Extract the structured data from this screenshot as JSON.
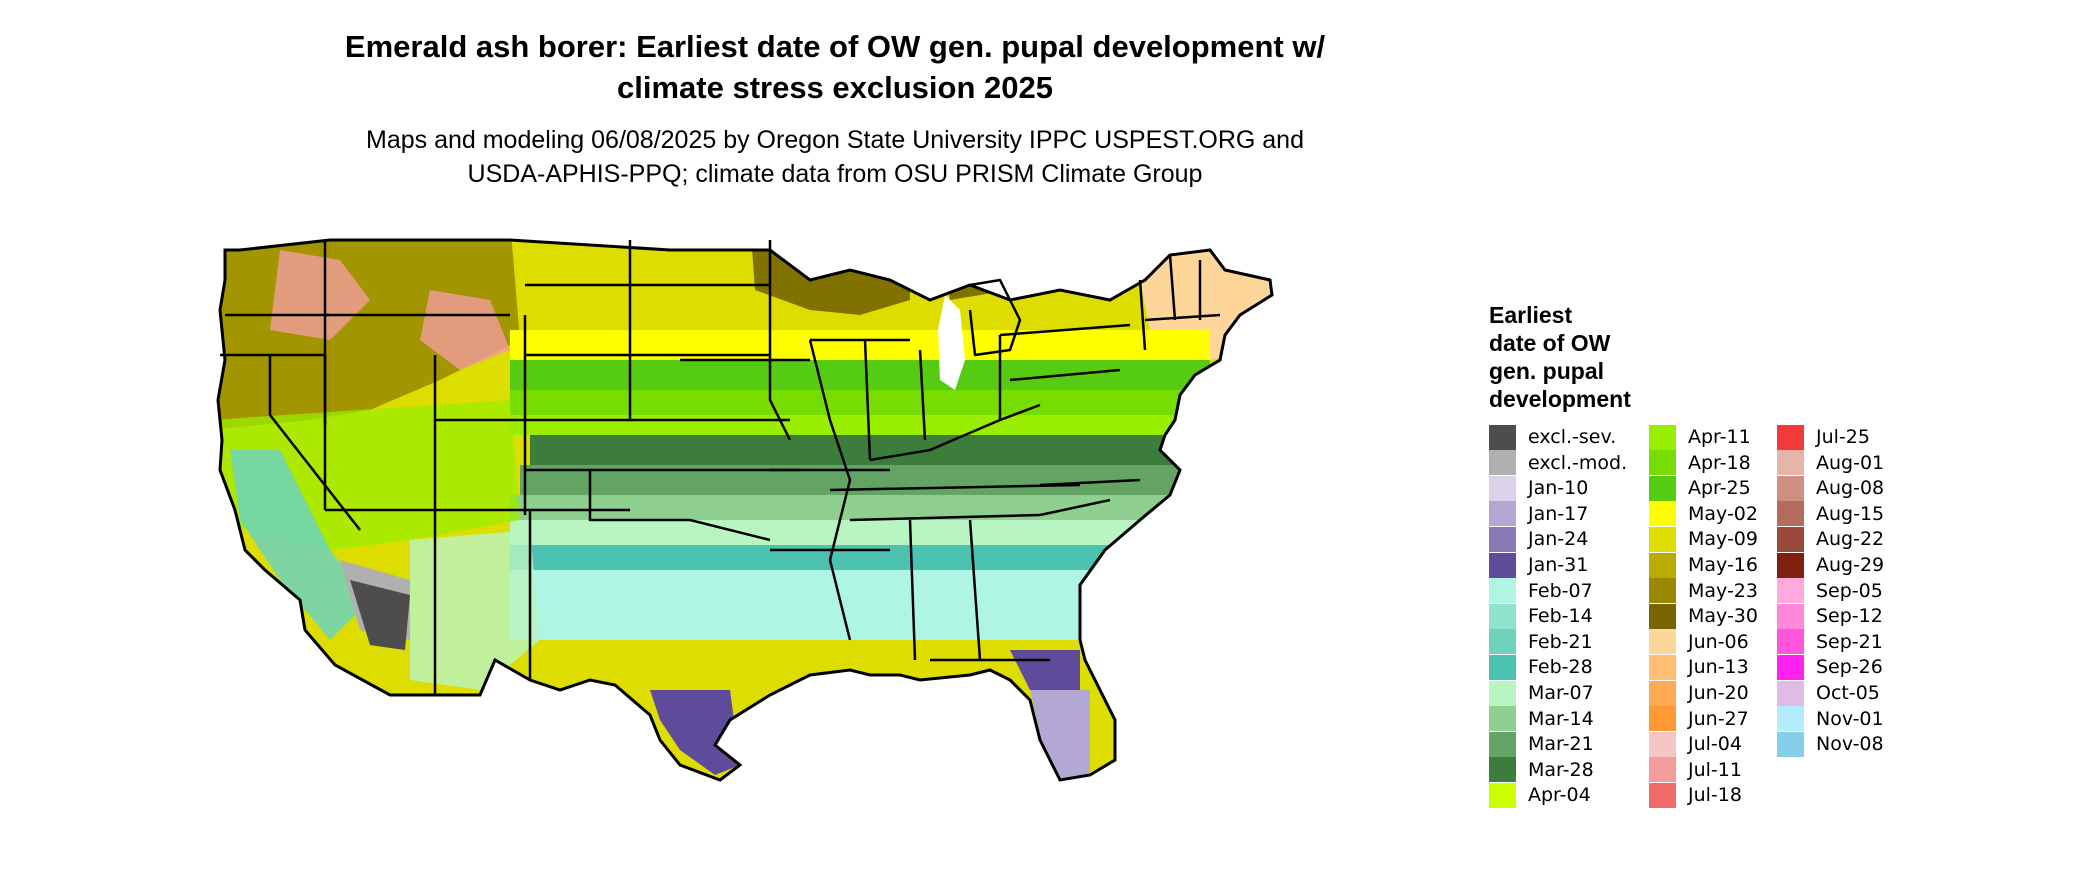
{
  "title": {
    "line1": "Emerald ash borer: Earliest date of OW gen. pupal development w/",
    "line2": "climate stress exclusion 2025"
  },
  "subtitle": {
    "line1": "Maps and modeling 06/08/2025 by Oregon State University IPPC USPEST.ORG and",
    "line2": "USDA-APHIS-PPQ; climate data from OSU PRISM Climate Group"
  },
  "legend": {
    "title_lines": [
      "Earliest",
      "date of OW",
      "gen. pupal",
      "development"
    ],
    "columns": [
      [
        {
          "label": "excl.-sev.",
          "color": "#4d4d4d"
        },
        {
          "label": "excl.-mod.",
          "color": "#b0b0b0"
        },
        {
          "label": "Jan-10",
          "color": "#d9d2e9"
        },
        {
          "label": "Jan-17",
          "color": "#b3a8d3"
        },
        {
          "label": "Jan-24",
          "color": "#8a78b6"
        },
        {
          "label": "Jan-31",
          "color": "#5e4b99"
        },
        {
          "label": "Feb-07",
          "color": "#aef5e3"
        },
        {
          "label": "Feb-14",
          "color": "#8fe3cc"
        },
        {
          "label": "Feb-21",
          "color": "#6dd3bd"
        },
        {
          "label": "Feb-28",
          "color": "#4cc3b0"
        },
        {
          "label": "Mar-07",
          "color": "#b9f5c2"
        },
        {
          "label": "Mar-14",
          "color": "#8fcf8f"
        },
        {
          "label": "Mar-21",
          "color": "#63a364"
        },
        {
          "label": "Mar-28",
          "color": "#3c7d3c"
        },
        {
          "label": "Apr-04",
          "color": "#ccff00"
        }
      ],
      [
        {
          "label": "Apr-11",
          "color": "#99ee00"
        },
        {
          "label": "Apr-18",
          "color": "#77dd00"
        },
        {
          "label": "Apr-25",
          "color": "#55cc11"
        },
        {
          "label": "May-02",
          "color": "#ffff00"
        },
        {
          "label": "May-09",
          "color": "#dddd00"
        },
        {
          "label": "May-16",
          "color": "#bbaa00"
        },
        {
          "label": "May-23",
          "color": "#998800"
        },
        {
          "label": "May-30",
          "color": "#776600"
        },
        {
          "label": "Jun-06",
          "color": "#ffd699"
        },
        {
          "label": "Jun-13",
          "color": "#ffbf73"
        },
        {
          "label": "Jun-20",
          "color": "#ffaa55"
        },
        {
          "label": "Jun-27",
          "color": "#ff9933"
        },
        {
          "label": "Jul-04",
          "color": "#f5c6c6"
        },
        {
          "label": "Jul-11",
          "color": "#f29c9c"
        },
        {
          "label": "Jul-18",
          "color": "#f06a6a"
        }
      ],
      [
        {
          "label": "Jul-25",
          "color": "#f23a3a"
        },
        {
          "label": "Aug-01",
          "color": "#e6b5aa"
        },
        {
          "label": "Aug-08",
          "color": "#cc8f80"
        },
        {
          "label": "Aug-15",
          "color": "#b36b5c"
        },
        {
          "label": "Aug-22",
          "color": "#99493a"
        },
        {
          "label": "Aug-29",
          "color": "#802010"
        },
        {
          "label": "Sep-05",
          "color": "#ffaadd"
        },
        {
          "label": "Sep-12",
          "color": "#ff88dd"
        },
        {
          "label": "Sep-21",
          "color": "#ff55dd"
        },
        {
          "label": "Sep-26",
          "color": "#ff22ee"
        },
        {
          "label": "Oct-05",
          "color": "#e0bbe4"
        },
        {
          "label": "Nov-01",
          "color": "#b3ecfa"
        },
        {
          "label": "Nov-08",
          "color": "#87ceeb"
        }
      ]
    ]
  },
  "map_colors": {
    "outline": "#000000",
    "north": "#dddd00",
    "northwest_dark": "#998800",
    "northwoods": "#776600",
    "maine": "#ffd699",
    "rocky_peaks": "#f29c9c",
    "band_may02": "#ffff00",
    "band_apr25": "#55cc11",
    "band_apr18": "#77dd00",
    "band_apr11": "#99ee00",
    "band_mar28": "#3c7d3c",
    "band_mar21": "#63a364",
    "band_mar14": "#8fcf8f",
    "band_mar07": "#b9f5c2",
    "band_feb28": "#4cc3b0",
    "band_feb07": "#aef5e3",
    "texas_coast": "#5e4b99",
    "florida_south": "#b3a8d3",
    "desert_excl": "#4d4d4d",
    "desert_mod": "#b0b0b0",
    "california_valley": "#6dd3bd",
    "lake": "#ffffff"
  }
}
